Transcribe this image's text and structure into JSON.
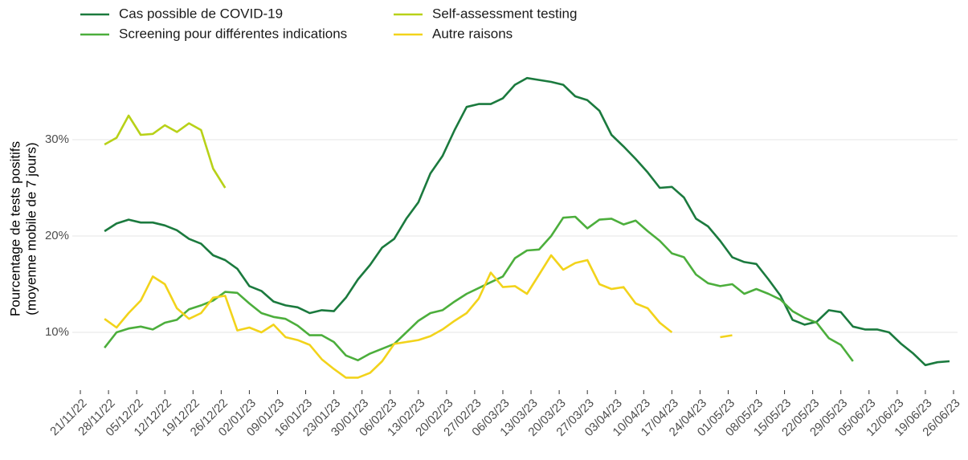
{
  "chart_data": {
    "type": "line",
    "y_label": [
      "Pourcentage de tests positifs",
      "(moyenne mobile de 7 jours)"
    ],
    "x": [
      "27/11/22",
      "30/11/22",
      "03/12/22",
      "06/12/22",
      "09/12/22",
      "12/12/22",
      "15/12/22",
      "18/12/22",
      "21/12/22",
      "24/12/22",
      "27/12/22",
      "30/12/22",
      "02/01/23",
      "05/01/23",
      "08/01/23",
      "11/01/23",
      "14/01/23",
      "17/01/23",
      "20/01/23",
      "23/01/23",
      "26/01/23",
      "29/01/23",
      "01/02/23",
      "04/02/23",
      "07/02/23",
      "10/02/23",
      "13/02/23",
      "16/02/23",
      "19/02/23",
      "22/02/23",
      "25/02/23",
      "28/02/23",
      "03/03/23",
      "06/03/23",
      "09/03/23",
      "12/03/23",
      "15/03/23",
      "18/03/23",
      "21/03/23",
      "24/03/23",
      "27/03/23",
      "30/03/23",
      "02/04/23",
      "05/04/23",
      "08/04/23",
      "11/04/23",
      "14/04/23",
      "17/04/23",
      "20/04/23",
      "23/04/23",
      "26/04/23",
      "29/04/23",
      "02/05/23",
      "05/05/23",
      "08/05/23",
      "11/05/23",
      "14/05/23",
      "17/05/23",
      "20/05/23",
      "23/05/23",
      "26/05/23",
      "29/05/23",
      "01/06/23",
      "04/06/23",
      "07/06/23",
      "10/06/23",
      "13/06/23",
      "16/06/23",
      "19/06/23",
      "22/06/23",
      "25/06/23"
    ],
    "series": [
      {
        "name": "Cas possible de COVID-19",
        "color": "#1b7a3e",
        "values": [
          20.5,
          21.3,
          21.7,
          21.4,
          21.4,
          21.1,
          20.6,
          19.7,
          19.2,
          18.0,
          17.5,
          16.6,
          14.8,
          14.3,
          13.2,
          12.8,
          12.6,
          12.0,
          12.3,
          12.2,
          13.6,
          15.5,
          17.0,
          18.8,
          19.7,
          21.8,
          23.5,
          26.5,
          28.3,
          31.0,
          33.4,
          33.7,
          33.7,
          34.3,
          35.7,
          36.4,
          36.2,
          36.0,
          35.7,
          34.5,
          34.1,
          33.0,
          30.5,
          29.3,
          28.0,
          26.6,
          25.0,
          25.1,
          24.0,
          21.8,
          21.0,
          19.5,
          17.8,
          17.3,
          17.1,
          15.5,
          13.8,
          11.3,
          10.8,
          11.1,
          12.3,
          12.1,
          10.6,
          10.3,
          10.3,
          10.0,
          8.8,
          7.8,
          6.6,
          6.9,
          7.0
        ]
      },
      {
        "name": "Screening pour différentes indications",
        "color": "#4cae3c",
        "values": [
          8.4,
          10.0,
          10.4,
          10.6,
          10.3,
          11.0,
          11.3,
          12.4,
          12.8,
          13.3,
          14.2,
          14.1,
          13.0,
          12.0,
          11.6,
          11.4,
          10.7,
          9.7,
          9.7,
          9.0,
          7.6,
          7.1,
          7.8,
          8.3,
          8.8,
          10.0,
          11.2,
          12.0,
          12.3,
          13.2,
          14.0,
          14.6,
          15.2,
          15.8,
          17.7,
          18.5,
          18.6,
          20.0,
          21.9,
          22.0,
          20.8,
          21.7,
          21.8,
          21.2,
          21.6,
          20.5,
          19.5,
          18.2,
          17.8,
          16.0,
          15.1,
          14.8,
          15.0,
          14.0,
          14.5,
          14.0,
          13.4,
          12.2,
          11.5,
          11.0,
          9.4,
          8.7,
          7.0,
          null,
          null,
          null,
          null,
          null,
          null,
          null,
          null
        ]
      },
      {
        "name": "Self-assessment testing",
        "color": "#b8d118",
        "values": [
          29.5,
          30.2,
          32.5,
          30.5,
          30.6,
          31.5,
          30.8,
          31.7,
          31.0,
          27.0,
          25.0,
          null,
          null,
          null,
          null,
          null,
          null,
          null,
          null,
          null,
          null,
          null,
          null,
          null,
          null,
          null,
          null,
          null,
          null,
          null,
          null,
          null,
          null,
          null,
          null,
          null,
          null,
          null,
          null,
          null,
          null,
          null,
          null,
          null,
          null,
          null,
          null,
          null,
          null,
          null,
          null,
          null,
          null,
          null,
          null,
          null,
          null,
          null,
          null,
          null,
          null,
          null,
          null,
          null,
          null,
          null,
          null,
          null,
          null,
          null,
          null
        ]
      },
      {
        "name": "Autre raisons",
        "color": "#f2d31b",
        "values": [
          11.4,
          10.5,
          12.0,
          13.3,
          15.8,
          15.0,
          12.5,
          11.4,
          12.0,
          13.6,
          13.8,
          10.2,
          10.5,
          10.0,
          10.8,
          9.5,
          9.2,
          8.7,
          7.2,
          6.2,
          5.3,
          5.3,
          5.8,
          7.0,
          8.8,
          9.0,
          9.2,
          9.6,
          10.3,
          11.2,
          12.0,
          13.5,
          16.2,
          14.7,
          14.8,
          14.0,
          16.0,
          18.0,
          16.5,
          17.2,
          17.5,
          15.0,
          14.5,
          14.7,
          13.0,
          12.5,
          11.0,
          10.0,
          null,
          null,
          null,
          9.5,
          9.7,
          null,
          null,
          null,
          null,
          null,
          null,
          null,
          null,
          null,
          null,
          null,
          null,
          null,
          null,
          null,
          null,
          null,
          null
        ]
      }
    ],
    "xlim": [
      "19/11/22",
      "27/06/23"
    ],
    "xticks": [
      "21/11/22",
      "28/11/22",
      "05/12/22",
      "12/12/22",
      "19/12/22",
      "26/12/22",
      "02/01/23",
      "09/01/23",
      "16/01/23",
      "23/01/23",
      "30/01/23",
      "06/02/23",
      "13/02/23",
      "20/02/23",
      "27/02/23",
      "06/03/23",
      "13/03/23",
      "20/03/23",
      "27/03/23",
      "03/04/23",
      "10/04/23",
      "17/04/23",
      "24/04/23",
      "01/05/23",
      "08/05/23",
      "15/05/23",
      "22/05/23",
      "29/05/23",
      "05/06/23",
      "12/06/23",
      "19/06/23",
      "26/06/23"
    ],
    "ylim": [
      4,
      38
    ],
    "yticks": [
      {
        "value": 10,
        "label": "10%"
      },
      {
        "value": 20,
        "label": "20%"
      },
      {
        "value": 30,
        "label": "30%"
      }
    ],
    "grid": true
  }
}
